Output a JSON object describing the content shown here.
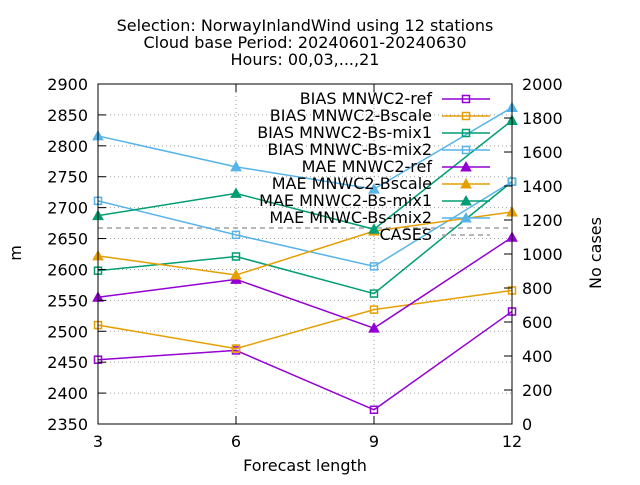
{
  "chart_data": {
    "type": "line",
    "title_lines": [
      "Selection: NorwayInlandWind using    12 stations",
      "Cloud base   Period: 20240601-20240630",
      "Hours: 00,03,...,21"
    ],
    "xlabel": "Forecast length",
    "ylabel": "m",
    "y2label": "No cases",
    "x": [
      3,
      6,
      9,
      12
    ],
    "xticks": [
      3,
      6,
      9,
      12
    ],
    "xlim": [
      3,
      12
    ],
    "ylim": [
      2350,
      2900
    ],
    "yticks": [
      2350,
      2400,
      2450,
      2500,
      2550,
      2600,
      2650,
      2700,
      2750,
      2800,
      2850,
      2900
    ],
    "y2lim": [
      0,
      2000
    ],
    "y2ticks": [
      0,
      200,
      400,
      600,
      800,
      1000,
      1200,
      1400,
      1600,
      1800,
      2000
    ],
    "grid": true,
    "legend_position": "top-right",
    "series": [
      {
        "name": "BIAS MNWC2-ref",
        "values": [
          2454,
          2469,
          2373,
          2532
        ],
        "color": "#9400d3",
        "marker": "square-open",
        "dash": "solid",
        "axis": "y"
      },
      {
        "name": "BIAS MNWC2-Bscale",
        "values": [
          2510,
          2472,
          2535,
          2566
        ],
        "color": "#e69f00",
        "marker": "square-open",
        "dash": "solid",
        "axis": "y"
      },
      {
        "name": "BIAS MNWC2-Bs-mix1",
        "values": [
          2598,
          2621,
          2561,
          2742
        ],
        "color": "#009e73",
        "marker": "square-open",
        "dash": "solid",
        "axis": "y"
      },
      {
        "name": "BIAS MNWC-Bs-mix2",
        "values": [
          2711,
          2656,
          2605,
          2742
        ],
        "color": "#56b4e9",
        "marker": "square-open",
        "dash": "solid",
        "axis": "y"
      },
      {
        "name": "MAE MNWC2-ref",
        "values": [
          2555,
          2584,
          2505,
          2652
        ],
        "color": "#9400d3",
        "marker": "triangle-filled",
        "dash": "solid",
        "axis": "y"
      },
      {
        "name": "MAE MNWC2-Bscale",
        "values": [
          2622,
          2591,
          2662,
          2693
        ],
        "color": "#e69f00",
        "marker": "triangle-filled",
        "dash": "solid",
        "axis": "y"
      },
      {
        "name": "MAE MNWC2-Bs-mix1",
        "values": [
          2687,
          2723,
          2665,
          2841
        ],
        "color": "#009e73",
        "marker": "triangle-filled",
        "dash": "solid",
        "axis": "y"
      },
      {
        "name": "MAE MNWC-Bs-mix2",
        "values": [
          2816,
          2766,
          2730,
          2862
        ],
        "color": "#56b4e9",
        "marker": "triangle-filled",
        "dash": "solid",
        "axis": "y"
      },
      {
        "name": "CASES",
        "values": [
          1153,
          1153,
          1153,
          1153
        ],
        "color": "#a0a0a0",
        "marker": "none",
        "dash": "dashed",
        "axis": "y2"
      }
    ]
  }
}
